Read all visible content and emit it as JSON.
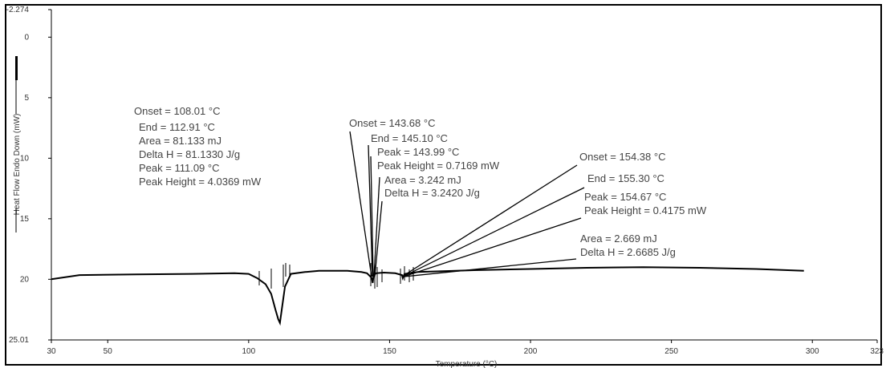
{
  "chart_data": {
    "type": "line",
    "title": "",
    "xlabel": "Temperature (°C)",
    "ylabel": "Heat Flow Endo Down (mW)",
    "xlim": [
      30,
      323
    ],
    "ylim_top": -2.274,
    "ylim_bottom": 25.01,
    "y_inverted": true,
    "grid": false,
    "x_ticks": [
      {
        "value": 30,
        "label": "30"
      },
      {
        "value": 50,
        "label": "50"
      },
      {
        "value": 100,
        "label": "100"
      },
      {
        "value": 150,
        "label": "150"
      },
      {
        "value": 200,
        "label": "200"
      },
      {
        "value": 250,
        "label": "250"
      },
      {
        "value": 300,
        "label": "300"
      },
      {
        "value": 323,
        "label": "323"
      }
    ],
    "y_ticks": [
      {
        "value": -2.274,
        "label": "-2.274"
      },
      {
        "value": 0,
        "label": "0"
      },
      {
        "value": 5,
        "label": "5"
      },
      {
        "value": 10,
        "label": "10"
      },
      {
        "value": 15,
        "label": "15"
      },
      {
        "value": 20,
        "label": "20"
      },
      {
        "value": 25.01,
        "label": "25.01"
      }
    ],
    "series": [
      {
        "points": [
          [
            30,
            20.0
          ],
          [
            40,
            19.65
          ],
          [
            60,
            19.6
          ],
          [
            80,
            19.55
          ],
          [
            95,
            19.5
          ],
          [
            100,
            19.55
          ],
          [
            103,
            19.9
          ],
          [
            106,
            20.4
          ],
          [
            108,
            21.2
          ],
          [
            109.5,
            22.5
          ],
          [
            110.5,
            23.3
          ],
          [
            111.1,
            23.6
          ],
          [
            111.8,
            22.4
          ],
          [
            112.9,
            20.6
          ],
          [
            115,
            19.55
          ],
          [
            120,
            19.4
          ],
          [
            125,
            19.3
          ],
          [
            130,
            19.3
          ],
          [
            135,
            19.3
          ],
          [
            140,
            19.4
          ],
          [
            142,
            19.5
          ],
          [
            143.7,
            19.9
          ],
          [
            144.0,
            20.3
          ],
          [
            144.3,
            19.8
          ],
          [
            145.1,
            19.5
          ],
          [
            148,
            19.45
          ],
          [
            152,
            19.5
          ],
          [
            154.4,
            19.65
          ],
          [
            154.7,
            19.9
          ],
          [
            155.3,
            19.55
          ],
          [
            160,
            19.4
          ],
          [
            180,
            19.25
          ],
          [
            200,
            19.15
          ],
          [
            220,
            19.05
          ],
          [
            240,
            19.0
          ],
          [
            260,
            19.05
          ],
          [
            280,
            19.15
          ],
          [
            297,
            19.3
          ]
        ]
      }
    ],
    "annotations": [
      {
        "lines": [
          "Onset = 108.01 °C",
          "End = 112.91 °C",
          "Area = 81.133 mJ",
          "Delta H = 81.1330 J/g",
          "Peak = 111.09 °C",
          "Peak Height = 4.0369 mW"
        ]
      },
      {
        "lines": [
          "Onset = 143.68 °C",
          "End = 145.10 °C",
          "Peak = 143.99 °C",
          "Peak Height = 0.7169 mW",
          "Area = 3.242 mJ",
          "Delta H = 3.2420 J/g"
        ]
      },
      {
        "lines": [
          "Onset = 154.38 °C",
          "End = 155.30 °C",
          "Peak = 154.67 °C",
          "Peak Height = 0.4175 mW",
          "Area = 2.669 mJ",
          "Delta H = 2.6685 J/g"
        ]
      }
    ]
  }
}
